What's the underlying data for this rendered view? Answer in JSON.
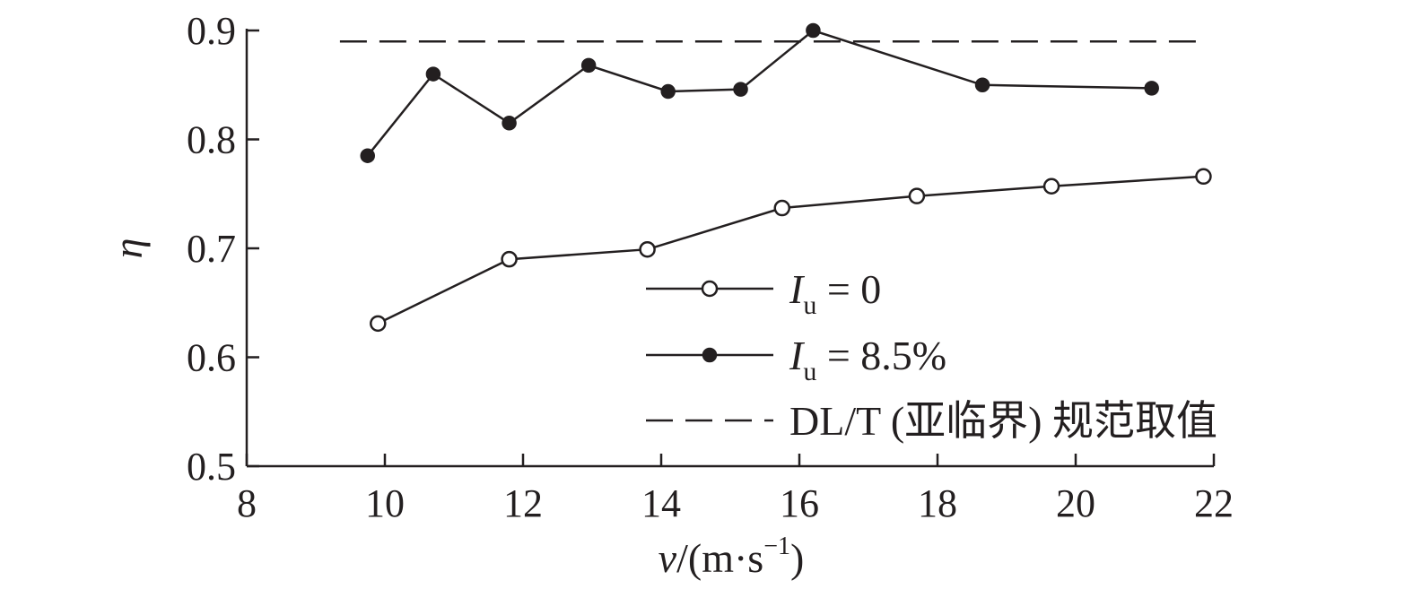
{
  "chart_data": {
    "type": "line",
    "xlabel": "v/(m·s−1)",
    "xlabel_parts": {
      "var": "v",
      "unit_open": "/(m·s",
      "sup": "−1",
      "unit_close": ")"
    },
    "ylabel": "η",
    "xlim": [
      8,
      22
    ],
    "ylim": [
      0.5,
      0.9
    ],
    "xticks": [
      8,
      10,
      12,
      14,
      16,
      18,
      20,
      22
    ],
    "yticks": [
      0.5,
      0.6,
      0.7,
      0.8,
      0.9
    ],
    "xtick_labels": [
      "8",
      "10",
      "12",
      "14",
      "16",
      "18",
      "20",
      "22"
    ],
    "ytick_labels": [
      "0.5",
      "0.6",
      "0.7",
      "0.8",
      "0.9"
    ],
    "grid": false,
    "legend_position": "bottom-right",
    "series": [
      {
        "name": "Iu = 0",
        "name_parts": {
          "var": "I",
          "sub": "u",
          "rest": " = 0"
        },
        "marker": "open-circle",
        "color": "#231f20",
        "x": [
          9.9,
          11.8,
          13.8,
          15.75,
          17.7,
          19.65,
          21.85
        ],
        "y": [
          0.631,
          0.69,
          0.699,
          0.737,
          0.748,
          0.757,
          0.766
        ]
      },
      {
        "name": "Iu = 8.5%",
        "name_parts": {
          "var": "I",
          "sub": "u",
          "rest": " = 8.5%"
        },
        "marker": "filled-circle",
        "color": "#231f20",
        "x": [
          9.75,
          10.7,
          11.8,
          12.95,
          14.1,
          15.15,
          16.2,
          18.65,
          21.1
        ],
        "y": [
          0.785,
          0.86,
          0.815,
          0.868,
          0.844,
          0.846,
          0.9,
          0.85,
          0.847
        ]
      },
      {
        "name": "DL/T (亚临界) 规范取值",
        "marker": "none",
        "style": "dashed",
        "color": "#231f20",
        "x": [
          9.35,
          21.85
        ],
        "y": [
          0.89,
          0.89
        ]
      }
    ]
  }
}
